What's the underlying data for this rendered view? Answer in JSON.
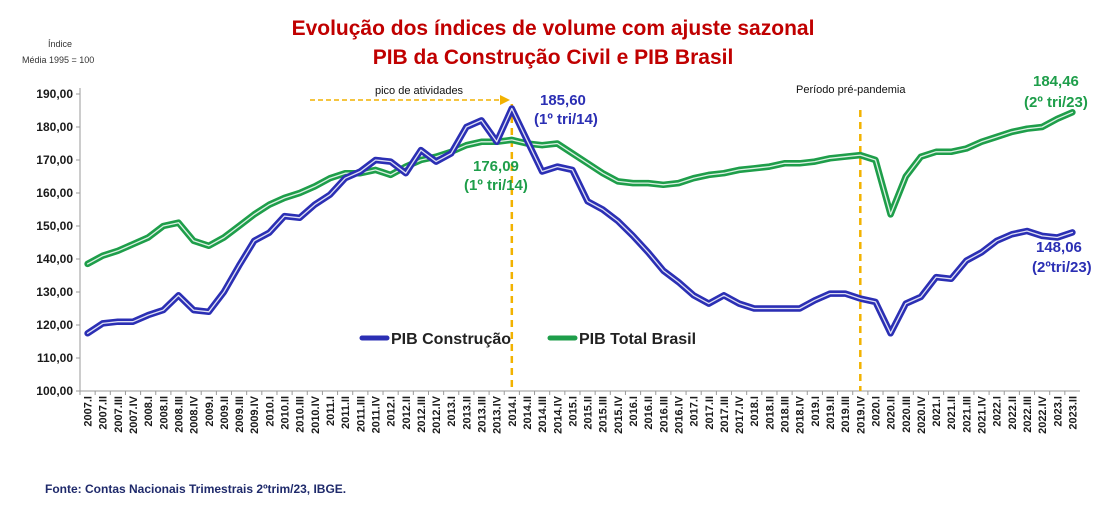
{
  "chart_data": {
    "type": "line",
    "title": "Evolução dos índices de volume com ajuste sazonal",
    "subtitle": "PIB da Construção Civil e  PIB Brasil",
    "ylabel_line1": "Índice",
    "ylabel_line2": "Média 1995 = 100",
    "ylim": [
      100,
      190
    ],
    "yticks": [
      "100,00",
      "110,00",
      "120,00",
      "130,00",
      "140,00",
      "150,00",
      "160,00",
      "170,00",
      "180,00",
      "190,00"
    ],
    "x": [
      "2007.I",
      "2007.II",
      "2007.III",
      "2007.IV",
      "2008.I",
      "2008.II",
      "2008.III",
      "2008.IV",
      "2009.I",
      "2009.II",
      "2009.III",
      "2009.IV",
      "2010.I",
      "2010.II",
      "2010.III",
      "2010.IV",
      "2011.I",
      "2011.II",
      "2011.III",
      "2011.IV",
      "2012.I",
      "2012.II",
      "2012.III",
      "2012.IV",
      "2013.I",
      "2013.II",
      "2013.III",
      "2013.IV",
      "2014.I",
      "2014.II",
      "2014.III",
      "2014.IV",
      "2015.I",
      "2015.II",
      "2015.III",
      "2015.IV",
      "2016.I",
      "2016.II",
      "2016.III",
      "2016.IV",
      "2017.I",
      "2017.II",
      "2017.III",
      "2017.IV",
      "2018.I",
      "2018.II",
      "2018.III",
      "2018.IV",
      "2019.I",
      "2019.II",
      "2019.III",
      "2019.IV",
      "2020.I",
      "2020.II",
      "2020.III",
      "2020.IV",
      "2021.I",
      "2021.II",
      "2021.III",
      "2021.IV",
      "2022.I",
      "2022.II",
      "2022.III",
      "2022.IV",
      "2023.I",
      "2023.II"
    ],
    "series": [
      {
        "name": "PIB Construção",
        "color": "#2b2fb4",
        "values": [
          117.5,
          120.5,
          121,
          121,
          123,
          124.5,
          129,
          124.5,
          124,
          130,
          138,
          145.5,
          148,
          153,
          152.5,
          156.5,
          159.5,
          164.5,
          166.5,
          170,
          169.5,
          166,
          173,
          169.5,
          172,
          180,
          182,
          175.5,
          185.6,
          176,
          166.5,
          168,
          167,
          157.5,
          155,
          151.5,
          147,
          142,
          136.5,
          133,
          129,
          126.5,
          129,
          126.5,
          125,
          125,
          125,
          125,
          127.5,
          129.5,
          129.5,
          128,
          127,
          117.5,
          126.5,
          128.5,
          134.5,
          134,
          139.5,
          142,
          145.5,
          147.5,
          148.5,
          147,
          146.5,
          148.06
        ]
      },
      {
        "name": "PIB Total Brasil",
        "color": "#1e9e4a",
        "values": [
          138.5,
          141,
          142.5,
          144.5,
          146.5,
          150,
          151,
          145.5,
          144,
          146.5,
          150,
          153.5,
          156.5,
          158.5,
          160,
          162,
          164.5,
          166,
          166,
          167,
          165.5,
          168,
          170,
          171,
          172.5,
          174.5,
          175.5,
          175.5,
          176.09,
          175,
          174.5,
          175,
          172,
          169,
          166,
          163.5,
          163,
          163,
          162.5,
          163,
          164.5,
          165.5,
          166,
          167,
          167.5,
          168,
          169,
          169,
          169.5,
          170.5,
          171,
          171.5,
          170,
          153.5,
          165,
          171,
          172.5,
          172.5,
          173.5,
          175.5,
          177,
          178.5,
          179.5,
          180,
          182.5,
          184.46
        ]
      }
    ],
    "annotations": {
      "construcao_peak_value": "185,60",
      "construcao_peak_period": "(1º tri/14)",
      "total_peak_value": "176,09",
      "total_peak_period": "(1º tri/14)",
      "construcao_last_value": "148,06",
      "construcao_last_period": "(2ºtri/23)",
      "total_last_value": "184,46",
      "total_last_period": "(2º tri/23)",
      "pico": "pico de atividades",
      "pre_pandemia": "Período pré-pandemia"
    },
    "legend": [
      "PIB Construção",
      "PIB Total Brasil"
    ]
  },
  "footer": {
    "source": "Fonte: Contas Nacionais Trimestrais 2ºtrim/23, IBGE."
  },
  "colors": {
    "title": "#c00000",
    "vline": "#f2b200",
    "construcao": "#2b2fb4",
    "total": "#1e9e4a"
  }
}
